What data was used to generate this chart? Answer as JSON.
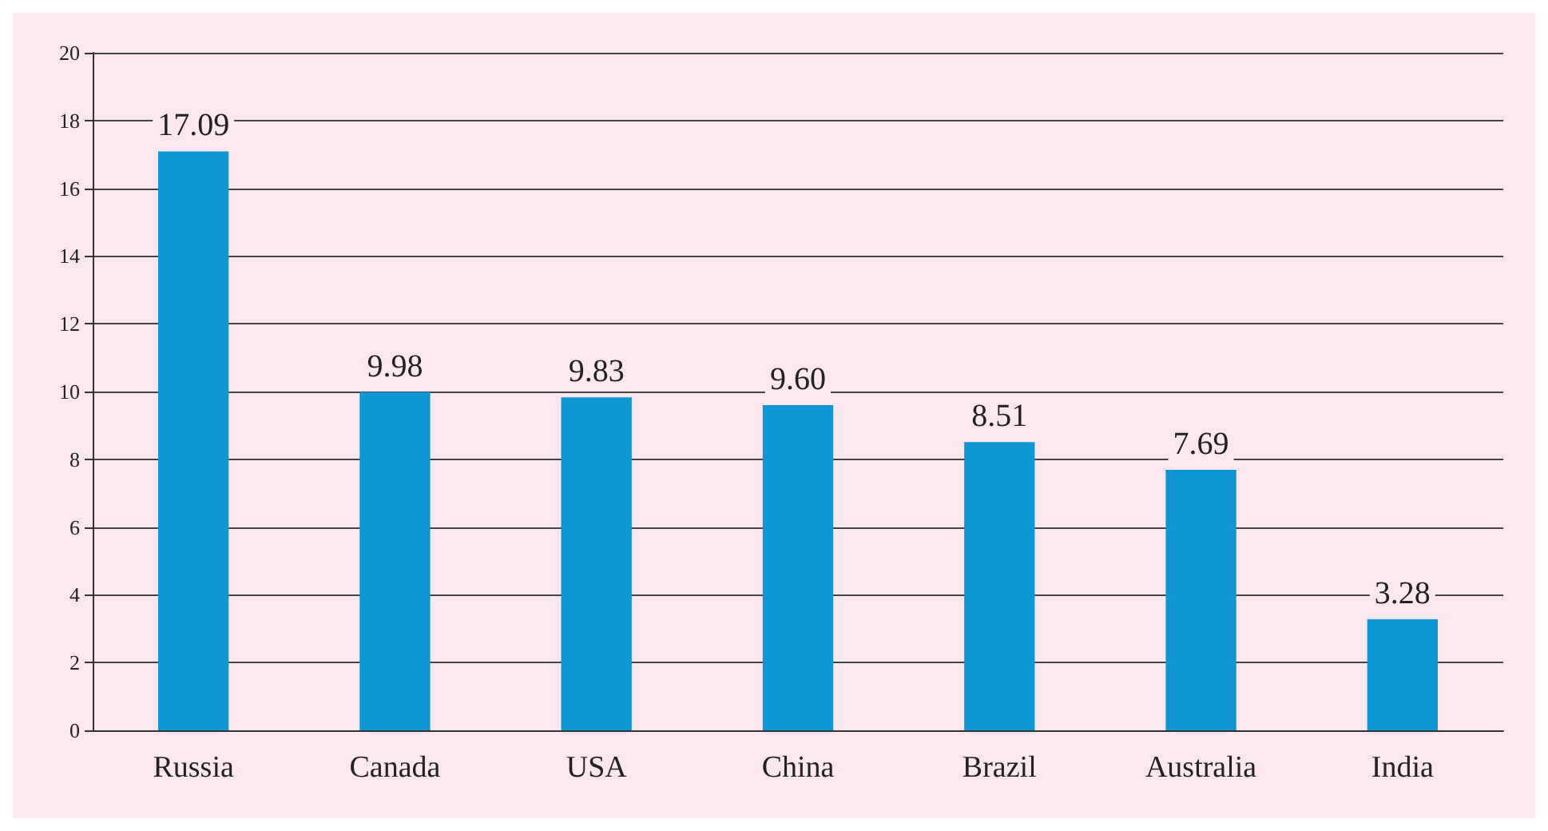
{
  "chart_data": {
    "type": "bar",
    "categories": [
      "Russia",
      "Canada",
      "USA",
      "China",
      "Brazil",
      "Australia",
      "India"
    ],
    "values": [
      17.09,
      9.98,
      9.83,
      9.6,
      8.51,
      7.69,
      3.28
    ],
    "value_labels": [
      "17.09",
      "9.98",
      "9.83",
      "9.60",
      "8.51",
      "7.69",
      "3.28"
    ],
    "color": "#0f96d4",
    "ylim": [
      0,
      20
    ],
    "yticks": [
      0,
      2,
      4,
      6,
      8,
      10,
      12,
      14,
      16,
      18,
      20
    ],
    "grid": "y"
  }
}
